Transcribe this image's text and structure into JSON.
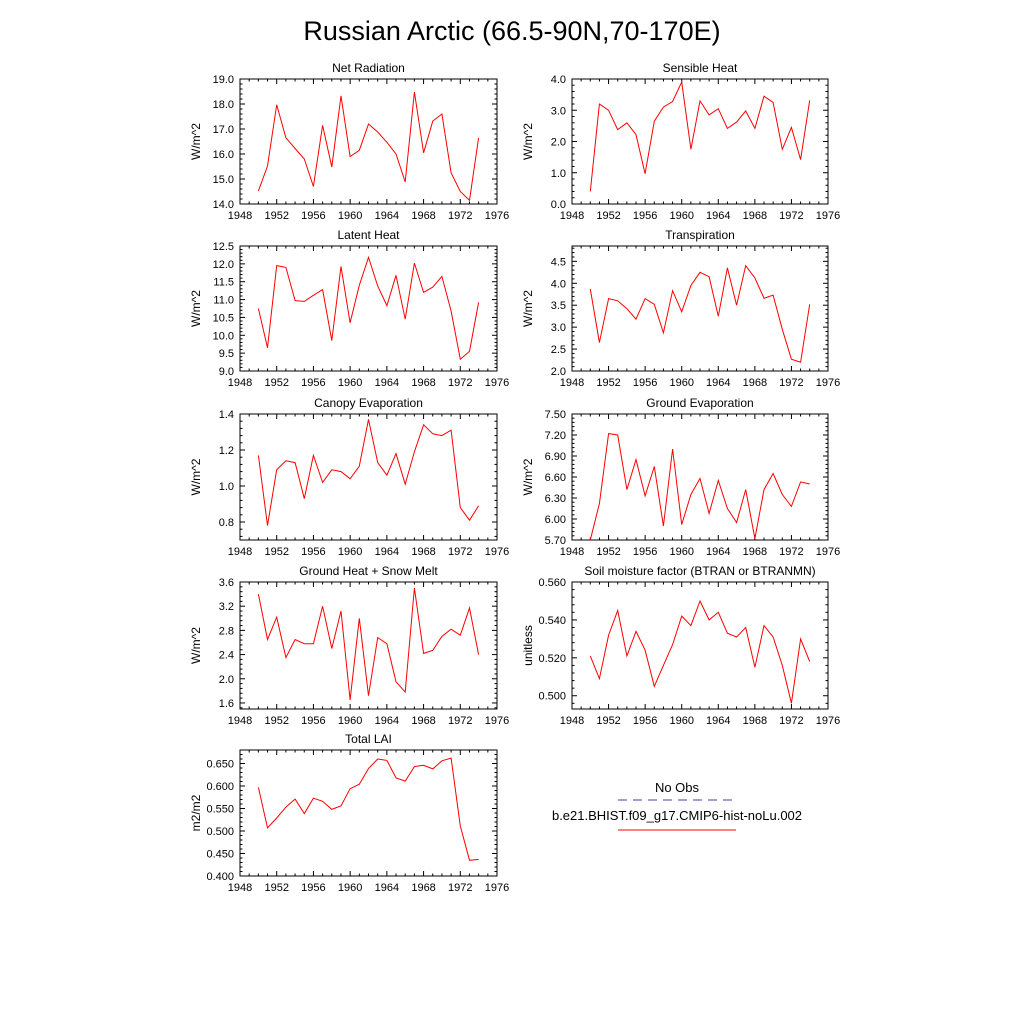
{
  "page": {
    "title": "Russian Arctic (66.5-90N,70-170E)"
  },
  "legend": {
    "entries": [
      {
        "label": "No Obs",
        "color": "#4040a0",
        "style": "dashed"
      },
      {
        "label": "b.e21.BHIST.f09_g17.CMIP6-hist-noLu.002",
        "color": "#ff0000",
        "style": "solid"
      }
    ]
  },
  "chart_data": [
    {
      "type": "line",
      "title": "Net Radiation",
      "ylabel": "W/m^2",
      "xlim": [
        1948,
        1976
      ],
      "x_ticks": [
        1948,
        1952,
        1956,
        1960,
        1964,
        1968,
        1972,
        1976
      ],
      "ylim": [
        14.0,
        19.0
      ],
      "y_ticks": [
        "14.0",
        "15.0",
        "16.0",
        "17.0",
        "18.0",
        "19.0"
      ],
      "series": [
        {
          "color": "#ff0000",
          "x": [
            1950,
            1951,
            1952,
            1953,
            1954,
            1955,
            1956,
            1957,
            1958,
            1959,
            1960,
            1961,
            1962,
            1963,
            1964,
            1965,
            1966,
            1967,
            1968,
            1969,
            1970,
            1971,
            1972,
            1973,
            1974
          ],
          "values": [
            14.52,
            15.52,
            17.97,
            16.65,
            16.22,
            15.8,
            14.7,
            17.15,
            15.48,
            18.33,
            15.9,
            16.15,
            17.2,
            16.88,
            16.47,
            16.0,
            14.88,
            18.48,
            16.05,
            17.32,
            17.6,
            15.25,
            14.5,
            14.15,
            16.65
          ]
        }
      ]
    },
    {
      "type": "line",
      "title": "Sensible Heat",
      "ylabel": "W/m^2",
      "xlim": [
        1948,
        1976
      ],
      "x_ticks": [
        1948,
        1952,
        1956,
        1960,
        1964,
        1968,
        1972,
        1976
      ],
      "ylim": [
        0.0,
        4.0
      ],
      "y_ticks": [
        "0.0",
        "1.0",
        "2.0",
        "3.0",
        "4.0"
      ],
      "series": [
        {
          "color": "#ff0000",
          "x": [
            1950,
            1951,
            1952,
            1953,
            1954,
            1955,
            1956,
            1957,
            1958,
            1959,
            1960,
            1961,
            1962,
            1963,
            1964,
            1965,
            1966,
            1967,
            1968,
            1969,
            1970,
            1971,
            1972,
            1973,
            1974
          ],
          "values": [
            0.4,
            3.2,
            3.0,
            2.38,
            2.6,
            2.22,
            0.97,
            2.65,
            3.1,
            3.28,
            3.9,
            1.75,
            3.3,
            2.85,
            3.05,
            2.42,
            2.62,
            2.98,
            2.42,
            3.45,
            3.25,
            1.75,
            2.45,
            1.42,
            3.32
          ]
        }
      ]
    },
    {
      "type": "line",
      "title": "Latent Heat",
      "ylabel": "W/m^2",
      "xlim": [
        1948,
        1976
      ],
      "x_ticks": [
        1948,
        1952,
        1956,
        1960,
        1964,
        1968,
        1972,
        1976
      ],
      "ylim": [
        9.0,
        12.5
      ],
      "y_ticks": [
        "9.0",
        "9.5",
        "10.0",
        "10.5",
        "11.0",
        "11.5",
        "12.0",
        "12.5"
      ],
      "series": [
        {
          "color": "#ff0000",
          "x": [
            1950,
            1951,
            1952,
            1953,
            1954,
            1955,
            1956,
            1957,
            1958,
            1959,
            1960,
            1961,
            1962,
            1963,
            1964,
            1965,
            1966,
            1967,
            1968,
            1969,
            1970,
            1971,
            1972,
            1973,
            1974
          ],
          "values": [
            10.75,
            9.65,
            11.95,
            11.9,
            10.97,
            10.95,
            11.12,
            11.28,
            9.85,
            11.93,
            10.35,
            11.4,
            12.18,
            11.38,
            10.83,
            11.68,
            10.45,
            12.02,
            11.2,
            11.35,
            11.65,
            10.68,
            9.33,
            9.55,
            10.92
          ]
        }
      ]
    },
    {
      "type": "line",
      "title": "Transpiration",
      "ylabel": "W/m^2",
      "xlim": [
        1948,
        1976
      ],
      "x_ticks": [
        1948,
        1952,
        1956,
        1960,
        1964,
        1968,
        1972,
        1976
      ],
      "ylim": [
        2.0,
        4.85
      ],
      "y_ticks": [
        "2.0",
        "2.5",
        "3.0",
        "3.5",
        "4.0",
        "4.5"
      ],
      "series": [
        {
          "color": "#ff0000",
          "x": [
            1950,
            1951,
            1952,
            1953,
            1954,
            1955,
            1956,
            1957,
            1958,
            1959,
            1960,
            1961,
            1962,
            1963,
            1964,
            1965,
            1966,
            1967,
            1968,
            1969,
            1970,
            1971,
            1972,
            1973,
            1974
          ],
          "values": [
            3.87,
            2.65,
            3.65,
            3.6,
            3.42,
            3.18,
            3.65,
            3.52,
            2.87,
            3.83,
            3.35,
            3.95,
            4.25,
            4.15,
            3.25,
            4.35,
            3.5,
            4.4,
            4.12,
            3.66,
            3.73,
            2.95,
            2.27,
            2.2,
            3.52
          ]
        }
      ]
    },
    {
      "type": "line",
      "title": "Canopy Evaporation",
      "ylabel": "W/m^2",
      "xlim": [
        1948,
        1976
      ],
      "x_ticks": [
        1948,
        1952,
        1956,
        1960,
        1964,
        1968,
        1972,
        1976
      ],
      "ylim": [
        0.7,
        1.4
      ],
      "y_ticks": [
        "0.8",
        "1.0",
        "1.2",
        "1.4"
      ],
      "series": [
        {
          "color": "#ff0000",
          "x": [
            1950,
            1951,
            1952,
            1953,
            1954,
            1955,
            1956,
            1957,
            1958,
            1959,
            1960,
            1961,
            1962,
            1963,
            1964,
            1965,
            1966,
            1967,
            1968,
            1969,
            1970,
            1971,
            1972,
            1973,
            1974
          ],
          "values": [
            1.17,
            0.78,
            1.09,
            1.14,
            1.13,
            0.93,
            1.17,
            1.02,
            1.09,
            1.08,
            1.04,
            1.11,
            1.37,
            1.13,
            1.06,
            1.18,
            1.01,
            1.19,
            1.34,
            1.29,
            1.28,
            1.31,
            0.88,
            0.81,
            0.89
          ]
        }
      ]
    },
    {
      "type": "line",
      "title": "Ground Evaporation",
      "ylabel": "W/m^2",
      "xlim": [
        1948,
        1976
      ],
      "x_ticks": [
        1948,
        1952,
        1956,
        1960,
        1964,
        1968,
        1972,
        1976
      ],
      "ylim": [
        5.7,
        7.5
      ],
      "y_ticks": [
        "5.70",
        "6.00",
        "6.30",
        "6.60",
        "6.90",
        "7.20",
        "7.50"
      ],
      "series": [
        {
          "color": "#ff0000",
          "x": [
            1950,
            1951,
            1952,
            1953,
            1954,
            1955,
            1956,
            1957,
            1958,
            1959,
            1960,
            1961,
            1962,
            1963,
            1964,
            1965,
            1966,
            1967,
            1968,
            1969,
            1970,
            1971,
            1972,
            1973,
            1974
          ],
          "values": [
            5.7,
            6.22,
            7.22,
            7.2,
            6.42,
            6.85,
            6.33,
            6.75,
            5.9,
            7.0,
            5.92,
            6.35,
            6.58,
            6.08,
            6.55,
            6.15,
            5.95,
            6.42,
            5.72,
            6.42,
            6.65,
            6.35,
            6.18,
            6.53,
            6.5
          ]
        }
      ]
    },
    {
      "type": "line",
      "title": "Ground Heat + Snow Melt",
      "ylabel": "W/m^2",
      "xlim": [
        1948,
        1976
      ],
      "x_ticks": [
        1948,
        1952,
        1956,
        1960,
        1964,
        1968,
        1972,
        1976
      ],
      "ylim": [
        1.5,
        3.6
      ],
      "y_ticks": [
        "1.6",
        "2.0",
        "2.4",
        "2.8",
        "3.2",
        "3.6"
      ],
      "series": [
        {
          "color": "#ff0000",
          "x": [
            1950,
            1951,
            1952,
            1953,
            1954,
            1955,
            1956,
            1957,
            1958,
            1959,
            1960,
            1961,
            1962,
            1963,
            1964,
            1965,
            1966,
            1967,
            1968,
            1969,
            1970,
            1971,
            1972,
            1973,
            1974
          ],
          "values": [
            3.4,
            2.65,
            3.02,
            2.35,
            2.65,
            2.58,
            2.58,
            3.2,
            2.5,
            3.12,
            1.65,
            3.0,
            1.72,
            2.68,
            2.58,
            1.95,
            1.78,
            3.5,
            2.42,
            2.47,
            2.7,
            2.82,
            2.72,
            3.17,
            2.4
          ]
        }
      ]
    },
    {
      "type": "line",
      "title": "Soil moisture factor (BTRAN or BTRANMN)",
      "ylabel": "unitless",
      "xlim": [
        1948,
        1976
      ],
      "x_ticks": [
        1948,
        1952,
        1956,
        1960,
        1964,
        1968,
        1972,
        1976
      ],
      "ylim": [
        0.493,
        0.56
      ],
      "y_ticks": [
        "0.500",
        "0.520",
        "0.540",
        "0.560"
      ],
      "series": [
        {
          "color": "#ff0000",
          "x": [
            1950,
            1951,
            1952,
            1953,
            1954,
            1955,
            1956,
            1957,
            1958,
            1959,
            1960,
            1961,
            1962,
            1963,
            1964,
            1965,
            1966,
            1967,
            1968,
            1969,
            1970,
            1971,
            1972,
            1973,
            1974
          ],
          "values": [
            0.521,
            0.509,
            0.532,
            0.545,
            0.521,
            0.534,
            0.524,
            0.505,
            0.516,
            0.527,
            0.542,
            0.537,
            0.55,
            0.54,
            0.544,
            0.533,
            0.531,
            0.536,
            0.515,
            0.537,
            0.531,
            0.516,
            0.496,
            0.53,
            0.518
          ]
        }
      ]
    },
    {
      "type": "line",
      "title": "Total LAI",
      "ylabel": "m2/m2",
      "xlim": [
        1948,
        1976
      ],
      "x_ticks": [
        1948,
        1952,
        1956,
        1960,
        1964,
        1968,
        1972,
        1976
      ],
      "ylim": [
        0.4,
        0.68
      ],
      "y_ticks": [
        "0.400",
        "0.450",
        "0.500",
        "0.550",
        "0.600",
        "0.650"
      ],
      "series": [
        {
          "color": "#ff0000",
          "x": [
            1950,
            1951,
            1952,
            1953,
            1954,
            1955,
            1956,
            1957,
            1958,
            1959,
            1960,
            1961,
            1962,
            1963,
            1964,
            1965,
            1966,
            1967,
            1968,
            1969,
            1970,
            1971,
            1972,
            1973,
            1974
          ],
          "values": [
            0.597,
            0.507,
            0.529,
            0.553,
            0.571,
            0.539,
            0.573,
            0.566,
            0.548,
            0.556,
            0.594,
            0.604,
            0.639,
            0.66,
            0.657,
            0.618,
            0.611,
            0.643,
            0.646,
            0.638,
            0.656,
            0.662,
            0.511,
            0.435,
            0.437
          ]
        }
      ]
    }
  ]
}
